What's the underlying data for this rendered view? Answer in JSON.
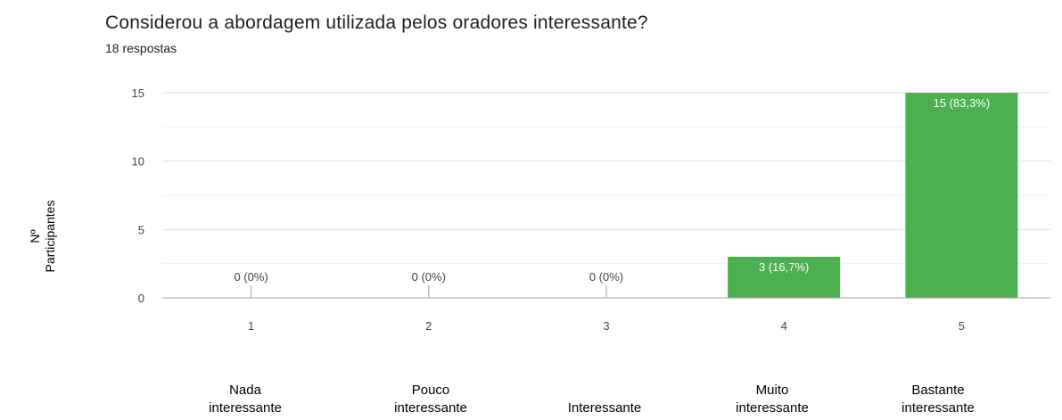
{
  "chart_data": {
    "type": "bar",
    "title": "Considerou a abordagem utilizada pelos oradores interessante?",
    "subtitle": "18 respostas",
    "ylabel_lines": [
      "Nº",
      "Participantes"
    ],
    "categories": [
      "1",
      "2",
      "3",
      "4",
      "5"
    ],
    "values": [
      0,
      0,
      0,
      3,
      15
    ],
    "data_labels": [
      "0 (0%)",
      "0 (0%)",
      "0 (0%)",
      "3 (16,7%)",
      "15 (83,3%)"
    ],
    "category_descriptions": [
      [
        "Nada",
        "interessante"
      ],
      [
        "Pouco",
        "interessante"
      ],
      [
        "",
        "Interessante"
      ],
      [
        "Muito",
        "interessante"
      ],
      [
        "Bastante",
        "interessante"
      ]
    ],
    "y_ticks": [
      0,
      5,
      10,
      15
    ],
    "ylim": [
      0,
      15
    ],
    "grid": true,
    "bar_color": "#4caf50"
  }
}
